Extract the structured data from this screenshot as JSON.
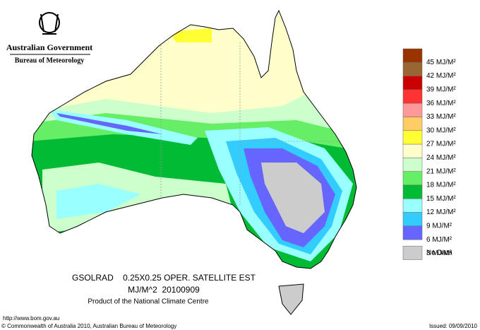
{
  "header": {
    "title": "Australian Government",
    "subtitle": "Bureau of Meteorology"
  },
  "legend": {
    "labels": [
      "45 MJ/M²",
      "42 MJ/M²",
      "39 MJ/M²",
      "36 MJ/M²",
      "33 MJ/M²",
      "30 MJ/M²",
      "27 MJ/M²",
      "24 MJ/M²",
      "21 MJ/M²",
      "18 MJ/M²",
      "15 MJ/M²",
      "12 MJ/M²",
      "9 MJ/M²",
      "6 MJ/M²",
      "3 MJ/M²",
      "No Data"
    ],
    "colors": [
      "#993300",
      "#996633",
      "#cc0000",
      "#ff3333",
      "#ff9999",
      "#ffcc66",
      "#ffff33",
      "#ffffcc",
      "#ccffcc",
      "#66ee66",
      "#00bb33",
      "#99ffff",
      "#33ccff",
      "#6666ff",
      "#cccccc"
    ]
  },
  "caption": {
    "line1": "GSOLRAD    0.25X0.25 OPER. SATELLITE EST",
    "line2": "MJ/M^2  20100909",
    "line3": "Product of the National Climate Centre"
  },
  "footer": {
    "url": "http://www.bom.gov.au",
    "copyright": "© Commonwealth of Australia 2010, Australian Bureau of Meteorology",
    "issued": "Issued: 09/09/2010"
  }
}
